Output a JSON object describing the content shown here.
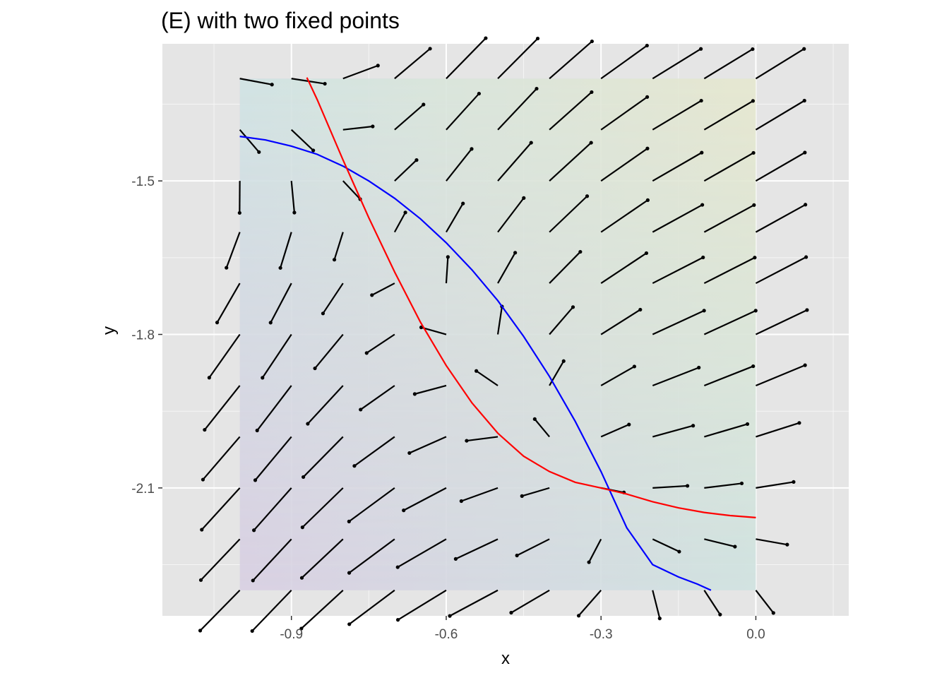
{
  "chart_data": {
    "type": "vector_field",
    "title": "(E) with two fixed points",
    "xlabel": "x",
    "ylabel": "y",
    "xlim": [
      -1.15,
      0.18
    ],
    "ylim": [
      -2.35,
      -1.232
    ],
    "x_ticks": [
      -0.9,
      -0.6,
      -0.3,
      0.0
    ],
    "x_tick_labels": [
      "-0.9",
      "-0.6",
      "-0.3",
      "0.0"
    ],
    "y_ticks": [
      -2.1,
      -1.8,
      -1.5
    ],
    "y_tick_labels": [
      "-2.1",
      "-1.8",
      "-1.5"
    ],
    "x_minor_ticks": [
      -1.05,
      -0.75,
      -0.45,
      -0.15,
      0.15
    ],
    "y_minor_ticks": [
      -2.25,
      -1.95,
      -1.65,
      -1.35
    ],
    "grid": true,
    "shaded_region": {
      "xrange": [
        -1.0,
        0.0
      ],
      "yrange": [
        -2.3,
        -1.3
      ],
      "corner_colors": {
        "bottom_left": "#d9d0e3",
        "bottom_right": "#d0e3e1",
        "top_left": "#d0e3e3",
        "top_right": "#e6e8cf"
      },
      "opacity": 0.55
    },
    "field": {
      "x_grid_start": -1.0,
      "x_step": 0.1,
      "x_count": 11,
      "y_grid_start": -2.3,
      "y_step": 0.1,
      "y_count": 11,
      "arrow_scale": 0.11,
      "color": "#000000",
      "head_dot": true
    },
    "series": [
      {
        "color": "#0000ff",
        "x": [
          -1.0,
          -0.95,
          -0.9,
          -0.85,
          -0.8,
          -0.75,
          -0.7,
          -0.65,
          -0.6,
          -0.55,
          -0.5,
          -0.45,
          -0.4,
          -0.35,
          -0.3,
          -0.25,
          -0.2,
          -0.15,
          -0.113,
          -0.087
        ],
        "y": [
          -1.413,
          -1.42,
          -1.432,
          -1.448,
          -1.471,
          -1.5,
          -1.534,
          -1.574,
          -1.621,
          -1.674,
          -1.734,
          -1.804,
          -1.882,
          -1.97,
          -2.068,
          -2.178,
          -2.25,
          -2.274,
          -2.288,
          -2.3
        ]
      },
      {
        "color": "#ff0000",
        "x": [
          -0.87,
          -0.85,
          -0.8,
          -0.75,
          -0.7,
          -0.65,
          -0.6,
          -0.55,
          -0.5,
          -0.45,
          -0.4,
          -0.35,
          -0.3,
          -0.25,
          -0.2,
          -0.15,
          -0.1,
          -0.05,
          0.0
        ],
        "y": [
          -1.298,
          -1.341,
          -1.459,
          -1.572,
          -1.678,
          -1.776,
          -1.861,
          -1.934,
          -1.993,
          -2.038,
          -2.068,
          -2.089,
          -2.1,
          -2.112,
          -2.127,
          -2.139,
          -2.148,
          -2.154,
          -2.158
        ]
      }
    ],
    "colors": {
      "panel_background": "#e5e5e5",
      "grid_major": "#ffffff",
      "tick_label": "#4d4d4d"
    }
  }
}
